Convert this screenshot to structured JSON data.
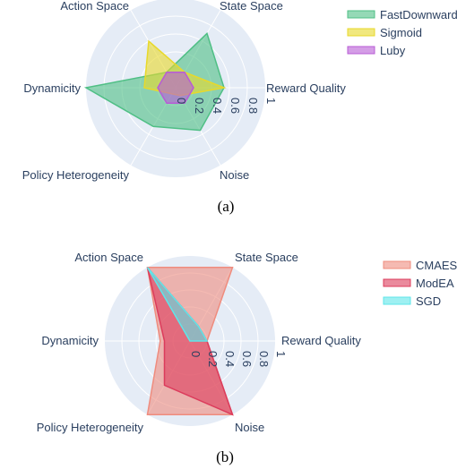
{
  "captions": [
    "(a)",
    "(b)"
  ],
  "chart_data": [
    {
      "type": "radar",
      "axes": [
        "Reward Quality",
        "State Space",
        "Action Space",
        "Dynamicity",
        "Policy Heterogeneity",
        "Noise"
      ],
      "radial_ticks": [
        "0",
        "0.2",
        "0.4",
        "0.6",
        "0.8",
        "1"
      ],
      "rlim": [
        0,
        1
      ],
      "grid": true,
      "legend_position": "top-right",
      "series": [
        {
          "name": "FastDownward",
          "color": "#4fbf85",
          "values": [
            0.54,
            0.7,
            0.2,
            1.0,
            0.5,
            0.55
          ]
        },
        {
          "name": "Sigmoid",
          "color": "#e8d92a",
          "values": [
            0.54,
            0.2,
            0.6,
            0.35,
            0.08,
            0.1
          ]
        },
        {
          "name": "Luby",
          "color": "#b85cd6",
          "values": [
            0.2,
            0.2,
            0.2,
            0.2,
            0.2,
            0.2
          ]
        }
      ]
    },
    {
      "type": "radar",
      "axes": [
        "Reward Quality",
        "State Space",
        "Action Space",
        "Dynamicity",
        "Policy Heterogeneity",
        "Noise"
      ],
      "radial_ticks": [
        "0",
        "0.2",
        "0.4",
        "0.6",
        "0.8",
        "1"
      ],
      "rlim": [
        0,
        1
      ],
      "grid": true,
      "legend_position": "top-right",
      "series": [
        {
          "name": "CMAES",
          "color": "#ef8c7e",
          "values": [
            0.2,
            1.0,
            1.0,
            0.35,
            1.0,
            1.0
          ]
        },
        {
          "name": "ModEA",
          "color": "#dc3c5c",
          "values": [
            0.2,
            0.2,
            1.0,
            0.3,
            0.6,
            1.0
          ]
        },
        {
          "name": "SGD",
          "color": "#5ee6ea",
          "values": [
            0.2,
            0.2,
            1.0,
            0.0,
            0.0,
            0.0
          ]
        }
      ]
    }
  ]
}
